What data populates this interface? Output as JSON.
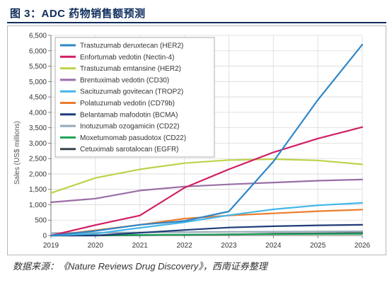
{
  "figure_title": "图 3：ADC 药物销售额预测",
  "source_note": "数据来源：《Nature Reviews Drug Discovery》，西南证券整理",
  "chart_data": {
    "type": "line",
    "ylabel": "Sales (US$ millions)",
    "xlabel": "",
    "ylim": [
      0,
      6500
    ],
    "yticks": [
      0,
      500,
      1000,
      1500,
      2000,
      2500,
      3000,
      3500,
      4000,
      4500,
      5000,
      5500,
      6000,
      6500
    ],
    "ytick_labels": [
      "0",
      "500",
      "1,000",
      "1,500",
      "2,000",
      "2,500",
      "3,000",
      "3,500",
      "4,000",
      "4,500",
      "5,000",
      "5,500",
      "6,000",
      "6,500"
    ],
    "x": [
      "2019",
      "2020",
      "2021",
      "2022",
      "2023",
      "2024",
      "2025",
      "2026"
    ],
    "grid": true,
    "legend_position": "top-left",
    "series": [
      {
        "name": "Trastuzumab deruxtecan (HER2)",
        "color": "#2e86c8",
        "values": [
          0,
          150,
          350,
          470,
          780,
          2400,
          4400,
          6200
        ]
      },
      {
        "name": "Enfortumab vedotin (Nectin-4)",
        "color": "#d11e65",
        "values": [
          0,
          340,
          650,
          1550,
          2150,
          2700,
          3150,
          3520
        ]
      },
      {
        "name": "Trastuzumab emtansine (HER2)",
        "color": "#bfd14a",
        "values": [
          1380,
          1870,
          2150,
          2350,
          2450,
          2480,
          2440,
          2310
        ]
      },
      {
        "name": "Brentuximab vedotin (CD30)",
        "color": "#9a6ea6",
        "values": [
          1080,
          1200,
          1460,
          1590,
          1660,
          1720,
          1780,
          1820
        ]
      },
      {
        "name": "Sacituzumab govitecan (TROP2)",
        "color": "#45b6e8",
        "values": [
          0,
          60,
          250,
          430,
          660,
          850,
          980,
          1060
        ]
      },
      {
        "name": "Polatuzumab vedotin (CD79b)",
        "color": "#ec7d2c",
        "values": [
          0,
          170,
          350,
          550,
          650,
          720,
          790,
          840
        ]
      },
      {
        "name": "Belantamab mafodotin (BCMA)",
        "color": "#1e3c78",
        "values": [
          0,
          0,
          90,
          180,
          260,
          300,
          330,
          350
        ]
      },
      {
        "name": "Inotuzumab ozogamicin (CD22)",
        "color": "#97aab8",
        "values": [
          80,
          90,
          100,
          110,
          120,
          125,
          130,
          135
        ]
      },
      {
        "name": "Moxetumomab pasudotox (CD22)",
        "color": "#1ea35a",
        "values": [
          0,
          10,
          20,
          30,
          40,
          45,
          50,
          55
        ]
      },
      {
        "name": "Cetuximab sarotalocan (EGFR)",
        "color": "#36454f",
        "values": [
          0,
          0,
          10,
          20,
          40,
          60,
          70,
          80
        ]
      }
    ]
  }
}
